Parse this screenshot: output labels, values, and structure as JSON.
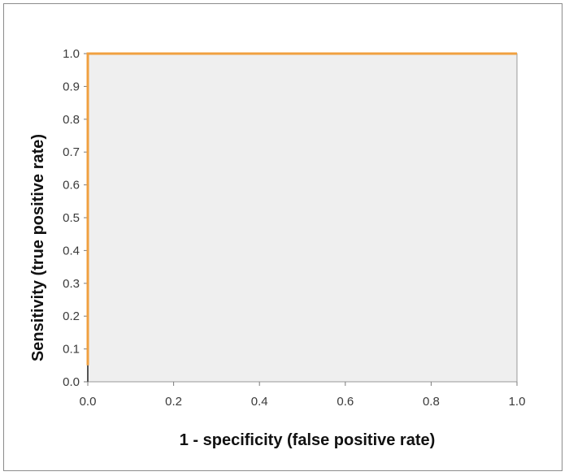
{
  "chart_data": {
    "type": "line",
    "title": "",
    "xlabel": "1 - specificity (false positive rate)",
    "ylabel": "Sensitivity (true positive  rate)",
    "xlim": [
      0,
      1
    ],
    "ylim": [
      0,
      1
    ],
    "x_ticks": [
      "0.0",
      "0.2",
      "0.4",
      "0.6",
      "0.8",
      "1.0"
    ],
    "y_ticks": [
      "0.0",
      "0.1",
      "0.2",
      "0.3",
      "0.4",
      "0.5",
      "0.6",
      "0.7",
      "0.8",
      "0.9",
      "1.0"
    ],
    "grid": false,
    "legend": "none",
    "plot_background": "#efefef",
    "series": [
      {
        "color": "#f0a040",
        "x": [
          0.0,
          0.0,
          1.0
        ],
        "y": [
          0.05,
          1.0,
          1.0
        ]
      },
      {
        "color": "#555555",
        "x": [
          0.0,
          0.0
        ],
        "y": [
          0.0,
          0.05
        ]
      }
    ]
  }
}
